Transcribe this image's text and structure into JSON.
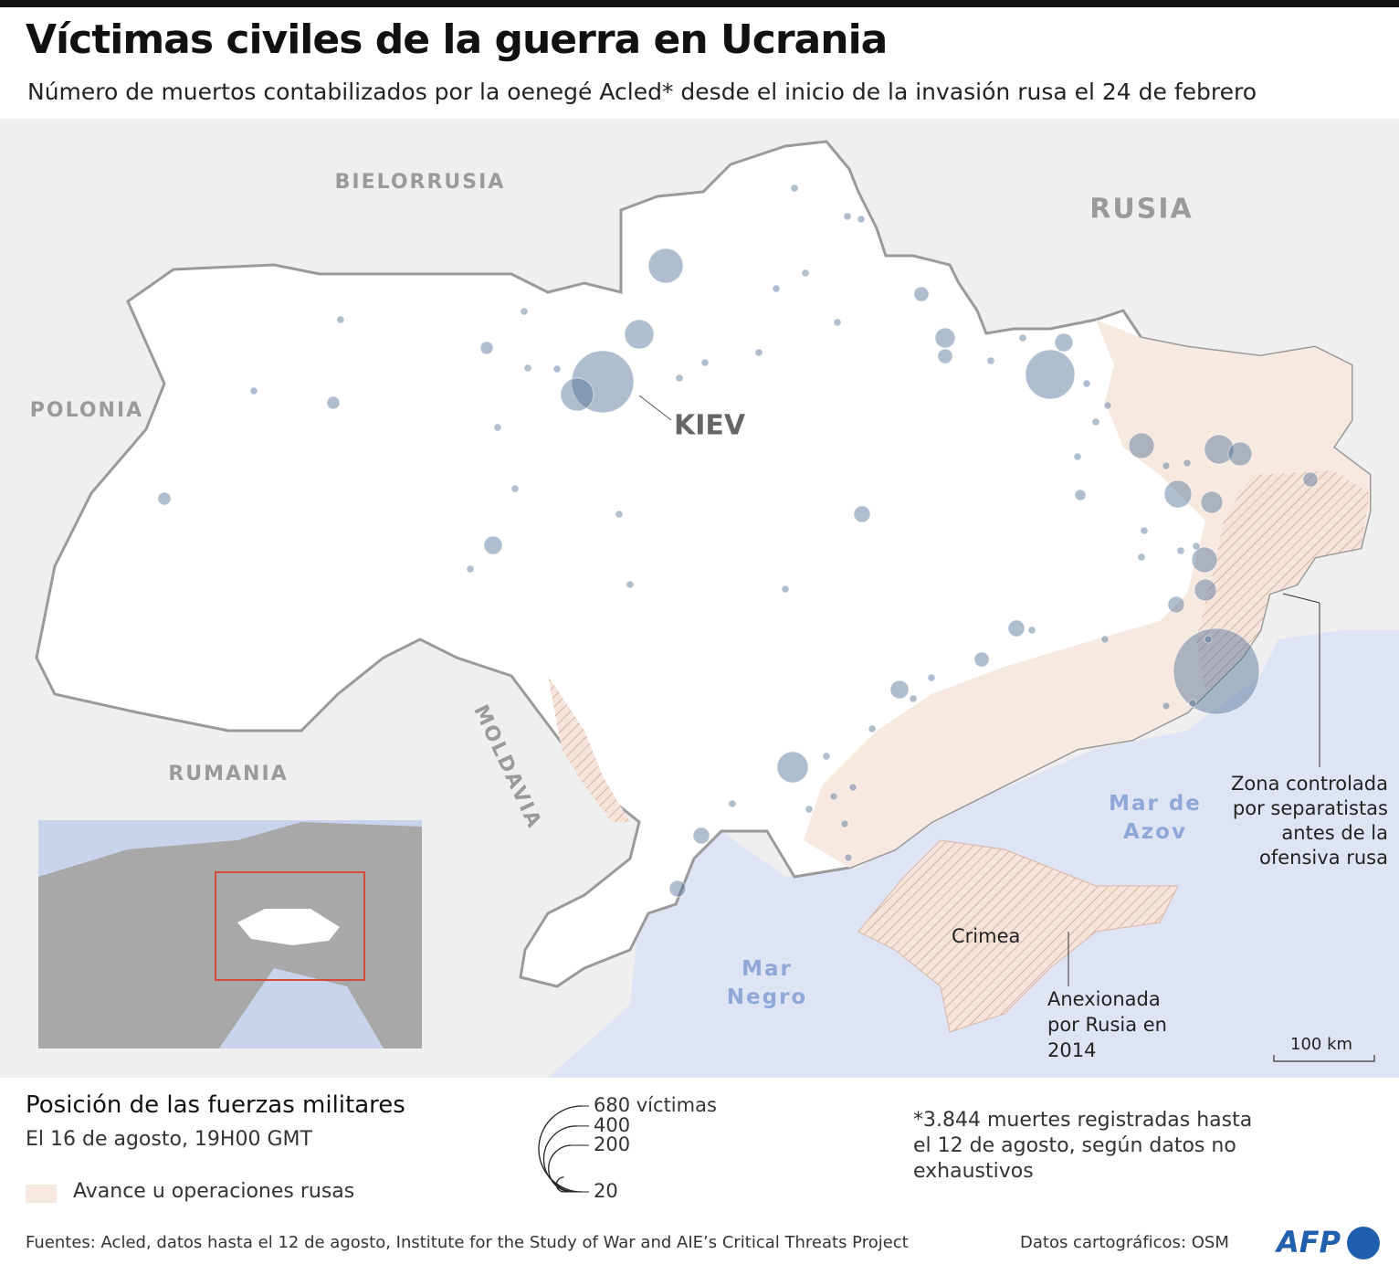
{
  "header": {
    "title": "Víctimas civiles de la guerra en Ucrania",
    "subtitle": "Número de muertos contabilizados por la oenegé Acled* desde el inicio de la invasión rusa el 24 de febrero"
  },
  "map": {
    "countries": [
      "BIELORRUSIA",
      "RUSIA",
      "POLONIA",
      "RUMANIA",
      "MOLDAVIA"
    ],
    "city": "KIEV",
    "seas": [
      "Mar de Azov",
      "Mar Negro"
    ],
    "annotations": {
      "crimea": "Crimea",
      "annexed": "Anexionada por Rusia en 2014",
      "separatists": "Zona controlada por separatistas antes de la ofensiva rusa"
    },
    "scale": "100 km",
    "bubbles": [
      680,
      355,
      100,
      79,
      111,
      224,
      79,
      69,
      60,
      60,
      89,
      37,
      44,
      52,
      44,
      31,
      25,
      25,
      25,
      25,
      25,
      31,
      20,
      15,
      15,
      15,
      20,
      11,
      20,
      20,
      31,
      5,
      5,
      5,
      5,
      5,
      5,
      5,
      5,
      5,
      5,
      5,
      5,
      5,
      5,
      5,
      5,
      5,
      5,
      5,
      5,
      5,
      5,
      5,
      5,
      5,
      5,
      5,
      5,
      5,
      5,
      5,
      5,
      5,
      5,
      5,
      5,
      5,
      5,
      5,
      5,
      5,
      5,
      5,
      5,
      5,
      5,
      5
    ]
  },
  "legend": {
    "title": "Posición de las fuerzas militares",
    "date": "El 16 de agosto, 19H00 GMT",
    "area": "Avance u operaciones rusas",
    "sizes": [
      {
        "value": 680,
        "label": "680 víctimas"
      },
      400,
      200,
      20
    ],
    "footnote": "*3.844 muertes registradas hasta el 12 de agosto, según datos no exhaustivos"
  },
  "footer": {
    "sources": "Fuentes: Acled, datos hasta el 12 de agosto, Institute for the Study of War and AIE’s Critical Threats Project",
    "osm": "Datos cartográficos: OSM",
    "logo": "AFP"
  }
}
